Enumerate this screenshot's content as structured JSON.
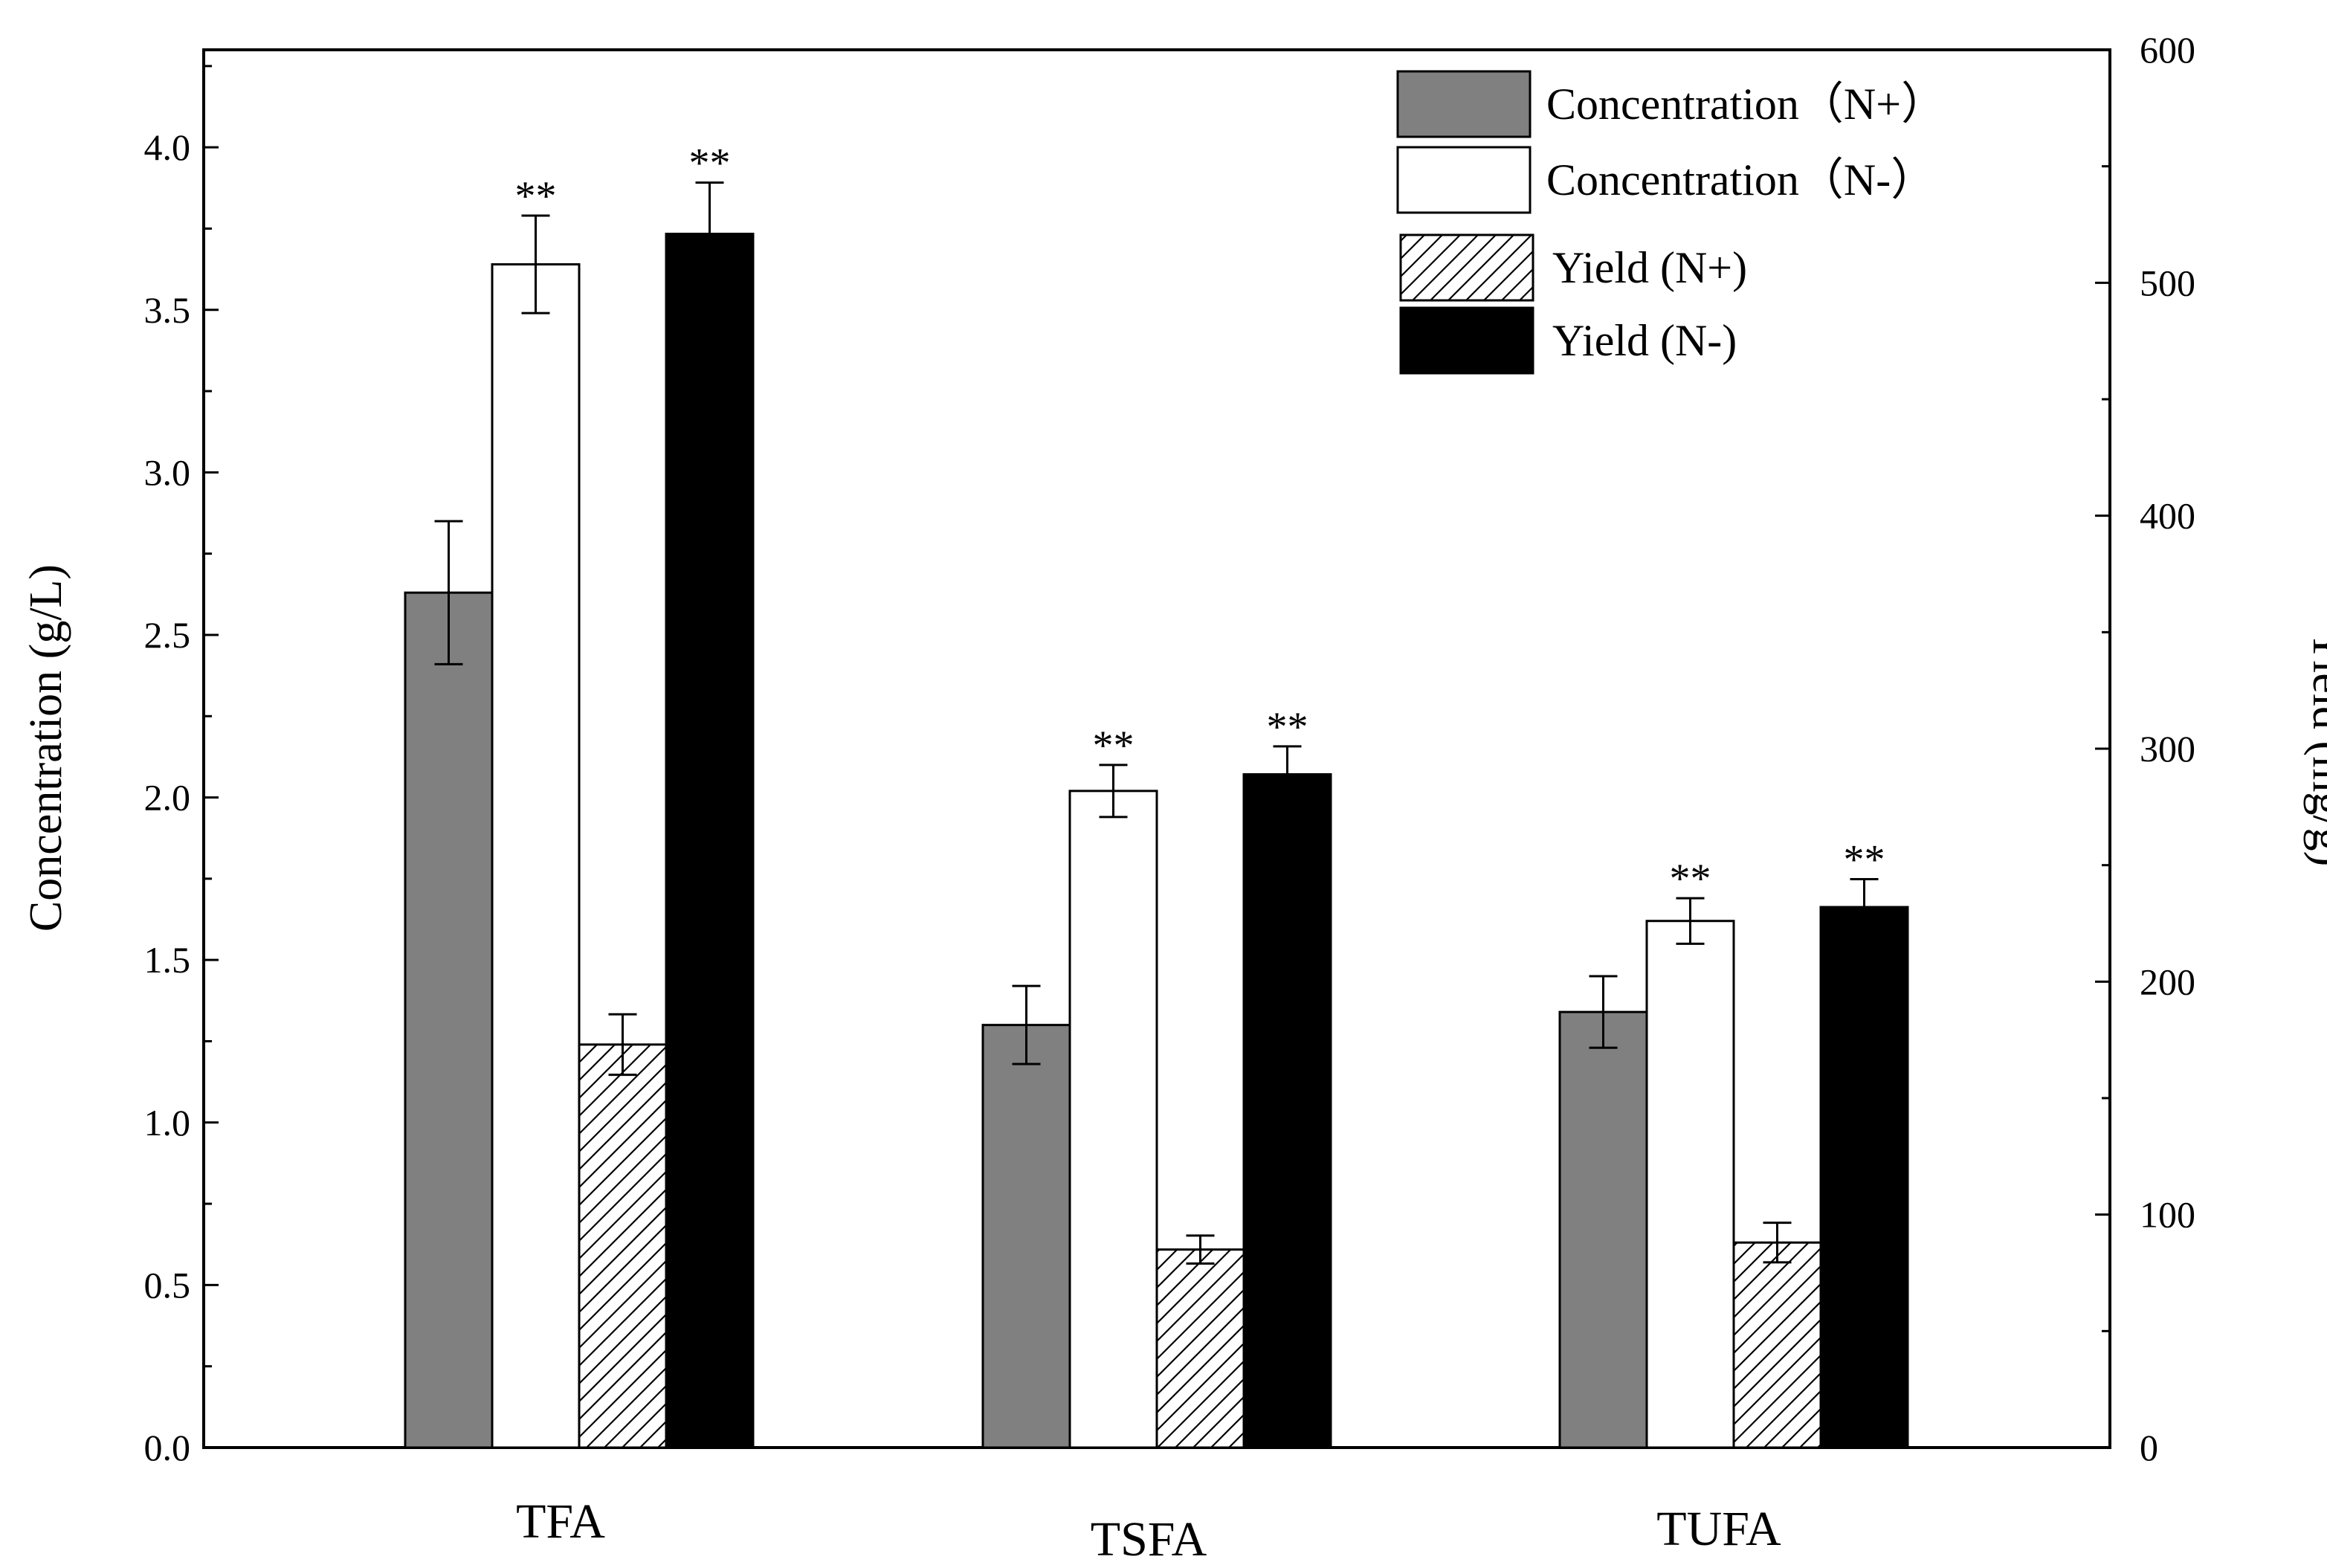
{
  "chart_data": {
    "type": "bar",
    "categories": [
      "TFA",
      "TSFA",
      "TUFA"
    ],
    "left_axis": {
      "label": "Concentration (g/L)",
      "ylim": [
        0,
        4.3
      ],
      "ticks": [
        "0.0",
        "0.5",
        "1.0",
        "1.5",
        "2.0",
        "2.5",
        "3.0",
        "3.5",
        "4.0"
      ]
    },
    "right_axis": {
      "label": "Yield (mg/g)",
      "ylim": [
        0,
        600
      ],
      "ticks": [
        "0",
        "100",
        "200",
        "300",
        "400",
        "500",
        "600"
      ]
    },
    "series": [
      {
        "name": "Concentration（N+）",
        "axis": "left",
        "fill": "#808080",
        "pattern": "solid",
        "values": [
          2.63,
          1.3,
          1.34
        ],
        "errors": [
          0.22,
          0.12,
          0.11
        ],
        "sig": [
          "",
          "",
          ""
        ]
      },
      {
        "name": "Concentration（N-）",
        "axis": "left",
        "fill": "#ffffff",
        "pattern": "solid",
        "values": [
          3.64,
          2.02,
          1.62
        ],
        "errors": [
          0.15,
          0.08,
          0.07
        ],
        "sig": [
          "**",
          "**",
          "**"
        ]
      },
      {
        "name": "Yield (N+)",
        "axis": "right",
        "fill": "#ffffff",
        "pattern": "hatch",
        "values": [
          173,
          85,
          88
        ],
        "errors": [
          13,
          6,
          8.5
        ],
        "sig": [
          "",
          "",
          ""
        ]
      },
      {
        "name": "Yield (N-)",
        "axis": "right",
        "fill": "#000000",
        "pattern": "solid",
        "values": [
          521,
          289,
          232
        ],
        "errors": [
          22,
          12,
          12
        ],
        "sig": [
          "**",
          "**",
          "**"
        ]
      }
    ],
    "legend_position": "top-right"
  }
}
